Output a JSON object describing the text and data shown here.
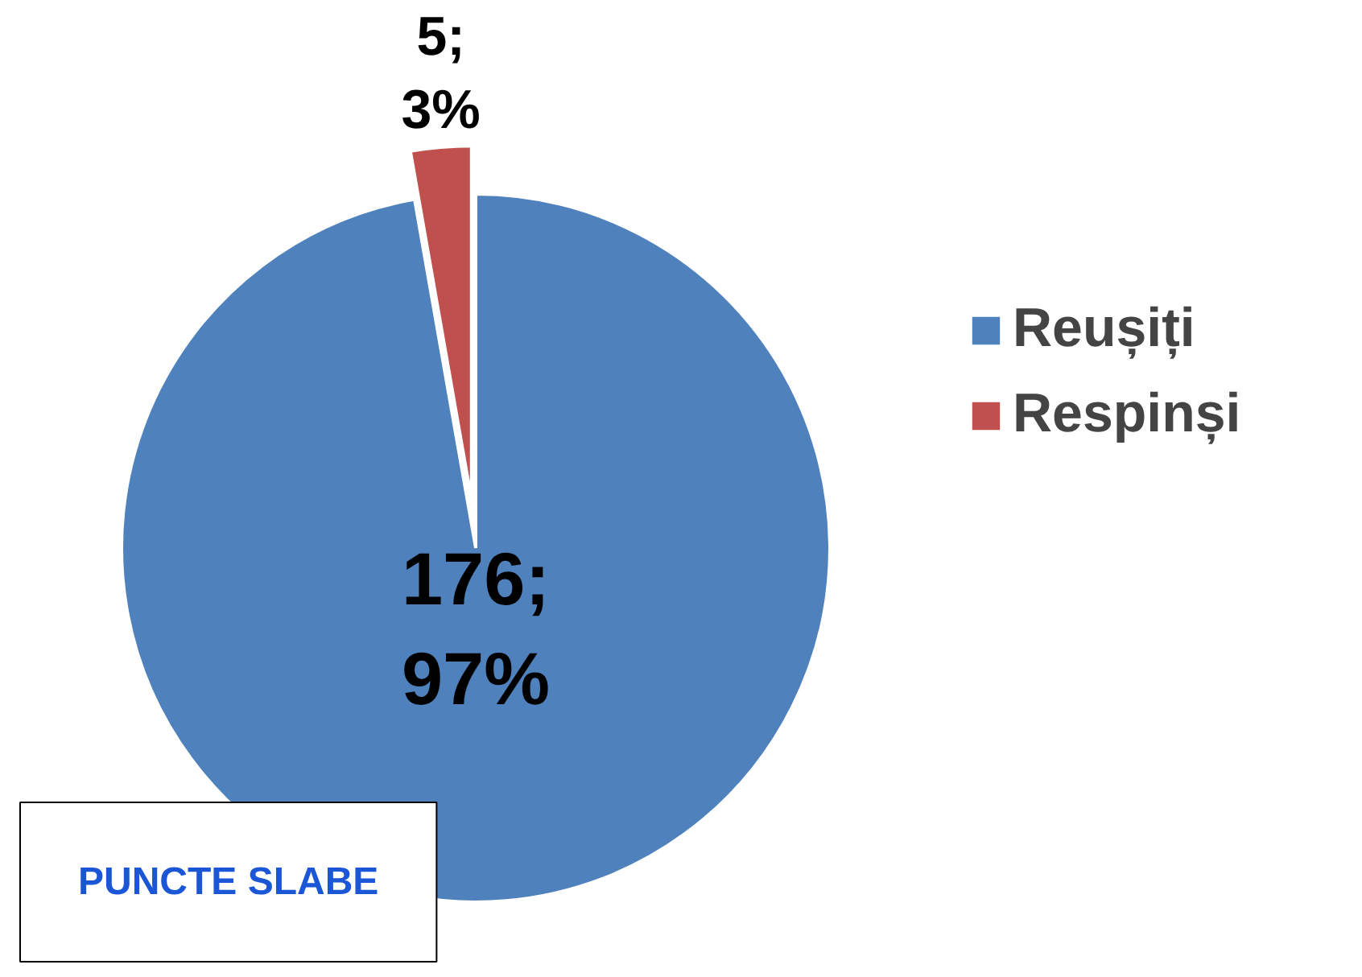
{
  "chart_data": {
    "type": "pie",
    "categories": [
      "Reușiți",
      "Respinși"
    ],
    "values": [
      176,
      5
    ],
    "colors": [
      "#4f81bd",
      "#c0504d"
    ],
    "value_labels": [
      "176;\n97%",
      "5;\n3%"
    ],
    "legend": "right",
    "annotations": [
      "PUNCTE SLABE"
    ]
  }
}
